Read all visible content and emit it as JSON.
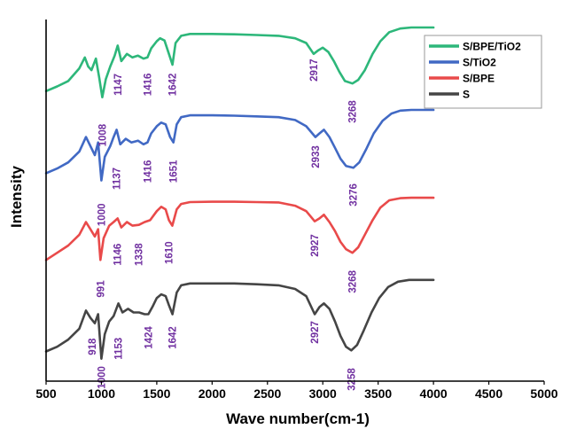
{
  "chart_data": {
    "type": "line",
    "title": "",
    "xlabel": "Wave number(cm-1)",
    "ylabel": "Intensity",
    "xlim": [
      500,
      5000
    ],
    "xticks": [
      500,
      1000,
      1500,
      2000,
      2500,
      3000,
      3500,
      4000,
      4500,
      5000
    ],
    "ylim": [
      0,
      100
    ],
    "y_tick_labels": false,
    "grid": false,
    "legend_position": "top-right",
    "label_color": "#7030a0",
    "series": [
      {
        "name": "S/BPE/TiO2",
        "color": "#2db77a",
        "x": [
          500,
          600,
          700,
          800,
          850,
          880,
          910,
          950,
          980,
          1008,
          1040,
          1080,
          1120,
          1147,
          1180,
          1230,
          1280,
          1330,
          1380,
          1416,
          1450,
          1500,
          1530,
          1570,
          1610,
          1642,
          1670,
          1720,
          1800,
          2000,
          2200,
          2400,
          2600,
          2750,
          2850,
          2917,
          2960,
          3000,
          3050,
          3100,
          3150,
          3200,
          3268,
          3320,
          3380,
          3450,
          3520,
          3600,
          3700,
          3800,
          3900,
          4000
        ],
        "y": [
          80.2,
          81.5,
          83.0,
          86.5,
          89.5,
          87.0,
          86.0,
          89.2,
          84.0,
          78.5,
          83.5,
          87.0,
          90.0,
          92.8,
          88.5,
          90.5,
          89.5,
          90.0,
          89.2,
          89.5,
          92.0,
          94.0,
          94.8,
          94.2,
          90.5,
          87.5,
          93.5,
          95.5,
          96.0,
          96.0,
          95.9,
          95.7,
          95.5,
          94.8,
          93.5,
          90.5,
          91.5,
          92.2,
          91.0,
          88.5,
          85.5,
          83.0,
          82.3,
          83.3,
          86.0,
          90.5,
          94.0,
          96.5,
          97.5,
          97.8,
          97.8,
          97.8
        ]
      },
      {
        "name": "S/TiO2",
        "color": "#4169c4",
        "x": [
          500,
          600,
          700,
          800,
          860,
          900,
          940,
          970,
          1000,
          1030,
          1080,
          1110,
          1137,
          1170,
          1220,
          1270,
          1330,
          1380,
          1416,
          1450,
          1500,
          1540,
          1580,
          1620,
          1651,
          1680,
          1720,
          1800,
          2000,
          2200,
          2400,
          2600,
          2750,
          2850,
          2933,
          2970,
          3010,
          3060,
          3110,
          3160,
          3210,
          3276,
          3330,
          3390,
          3460,
          3540,
          3620,
          3700,
          3800,
          3900,
          4000
        ],
        "y": [
          57.5,
          58.8,
          60.5,
          63.5,
          67.5,
          65.0,
          62.5,
          66.0,
          55.5,
          62.0,
          65.0,
          67.5,
          69.5,
          65.5,
          67.0,
          66.0,
          66.5,
          65.5,
          66.0,
          68.5,
          70.5,
          71.5,
          71.0,
          67.5,
          66.0,
          71.0,
          73.0,
          73.5,
          73.5,
          73.4,
          73.2,
          73.0,
          72.2,
          70.5,
          67.5,
          68.5,
          69.5,
          67.5,
          64.5,
          61.5,
          59.5,
          59.0,
          60.5,
          64.0,
          68.5,
          72.0,
          74.0,
          74.8,
          75.0,
          75.0,
          75.0
        ]
      },
      {
        "name": "S/BPE",
        "color": "#e94a4a",
        "x": [
          500,
          600,
          700,
          800,
          860,
          900,
          940,
          970,
          991,
          1020,
          1070,
          1110,
          1146,
          1180,
          1230,
          1280,
          1338,
          1390,
          1440,
          1500,
          1540,
          1580,
          1610,
          1640,
          1680,
          1720,
          1800,
          2000,
          2200,
          2400,
          2600,
          2750,
          2850,
          2927,
          2970,
          3010,
          3060,
          3110,
          3160,
          3210,
          3268,
          3320,
          3380,
          3450,
          3520,
          3600,
          3700,
          3800,
          3900,
          4000
        ],
        "y": [
          33.5,
          35.5,
          37.5,
          40.5,
          44.0,
          42.0,
          40.0,
          42.0,
          33.5,
          39.5,
          43.0,
          44.0,
          45.0,
          42.5,
          44.0,
          43.0,
          43.2,
          44.0,
          44.5,
          47.0,
          48.2,
          47.5,
          44.5,
          43.0,
          47.5,
          49.0,
          49.5,
          49.6,
          49.6,
          49.5,
          49.4,
          48.5,
          47.0,
          44.2,
          45.0,
          46.0,
          44.0,
          41.5,
          38.5,
          36.5,
          35.5,
          37.0,
          40.5,
          44.5,
          48.0,
          50.0,
          50.6,
          50.7,
          50.7,
          50.7
        ]
      },
      {
        "name": "S",
        "color": "#454545",
        "x": [
          500,
          600,
          700,
          800,
          860,
          900,
          940,
          970,
          1000,
          1030,
          1070,
          1110,
          1153,
          1190,
          1240,
          1290,
          1340,
          1390,
          1424,
          1460,
          1500,
          1540,
          1580,
          1610,
          1642,
          1680,
          1720,
          1800,
          2000,
          2200,
          2400,
          2600,
          2750,
          2850,
          2927,
          2970,
          3010,
          3060,
          3110,
          3160,
          3210,
          3258,
          3310,
          3370,
          3440,
          3510,
          3590,
          3680,
          3780,
          3900,
          4000
        ],
        "y": [
          8.2,
          9.5,
          11.5,
          14.5,
          19.5,
          17.5,
          16.0,
          18.5,
          6.2,
          13.0,
          16.5,
          18.0,
          21.5,
          19.0,
          20.0,
          19.0,
          19.0,
          18.5,
          18.5,
          20.5,
          23.0,
          24.0,
          23.5,
          21.0,
          18.5,
          24.5,
          26.5,
          27.0,
          27.0,
          27.0,
          26.8,
          26.5,
          25.5,
          23.5,
          18.5,
          20.5,
          21.5,
          20.0,
          16.5,
          12.5,
          9.5,
          8.5,
          10.0,
          14.0,
          19.0,
          23.0,
          26.0,
          27.5,
          28.0,
          28.0,
          28.0
        ]
      }
    ],
    "peak_labels": [
      {
        "series": "S/BPE/TiO2",
        "text": "1008",
        "x": 1008,
        "y": 68.0
      },
      {
        "series": "S/BPE/TiO2",
        "text": "1147",
        "x": 1147,
        "y": 82.0
      },
      {
        "series": "S/BPE/TiO2",
        "text": "1416",
        "x": 1416,
        "y": 82.0
      },
      {
        "series": "S/BPE/TiO2",
        "text": "1642",
        "x": 1642,
        "y": 82.0
      },
      {
        "series": "S/BPE/TiO2",
        "text": "2917",
        "x": 2917,
        "y": 86.0
      },
      {
        "series": "S/BPE/TiO2",
        "text": "3268",
        "x": 3268,
        "y": 74.5
      },
      {
        "series": "S/TiO2",
        "text": "1000",
        "x": 1000,
        "y": 46.0
      },
      {
        "series": "S/TiO2",
        "text": "1137",
        "x": 1137,
        "y": 56.0
      },
      {
        "series": "S/TiO2",
        "text": "1416",
        "x": 1416,
        "y": 58.0
      },
      {
        "series": "S/TiO2",
        "text": "1651",
        "x": 1651,
        "y": 58.0
      },
      {
        "series": "S/TiO2",
        "text": "2933",
        "x": 2933,
        "y": 62.0
      },
      {
        "series": "S/TiO2",
        "text": "3276",
        "x": 3276,
        "y": 51.5
      },
      {
        "series": "S/BPE",
        "text": "991",
        "x": 991,
        "y": 25.5
      },
      {
        "series": "S/BPE",
        "text": "1146",
        "x": 1146,
        "y": 35.0
      },
      {
        "series": "S/BPE",
        "text": "1338",
        "x": 1338,
        "y": 35.0
      },
      {
        "series": "S/BPE",
        "text": "1610",
        "x": 1610,
        "y": 35.5
      },
      {
        "series": "S/BPE",
        "text": "2927",
        "x": 2927,
        "y": 37.5
      },
      {
        "series": "S/BPE",
        "text": "3268",
        "x": 3268,
        "y": 27.5
      },
      {
        "series": "S",
        "text": "918",
        "x": 918,
        "y": 9.5
      },
      {
        "series": "S",
        "text": "1000",
        "x": 1000,
        "y": 1.0
      },
      {
        "series": "S",
        "text": "1153",
        "x": 1153,
        "y": 9.0
      },
      {
        "series": "S",
        "text": "1424",
        "x": 1424,
        "y": 12.0
      },
      {
        "series": "S",
        "text": "1642",
        "x": 1642,
        "y": 12.0
      },
      {
        "series": "S",
        "text": "2927",
        "x": 2927,
        "y": 13.5
      },
      {
        "series": "S",
        "text": "3258",
        "x": 3258,
        "y": 0.5
      }
    ]
  }
}
